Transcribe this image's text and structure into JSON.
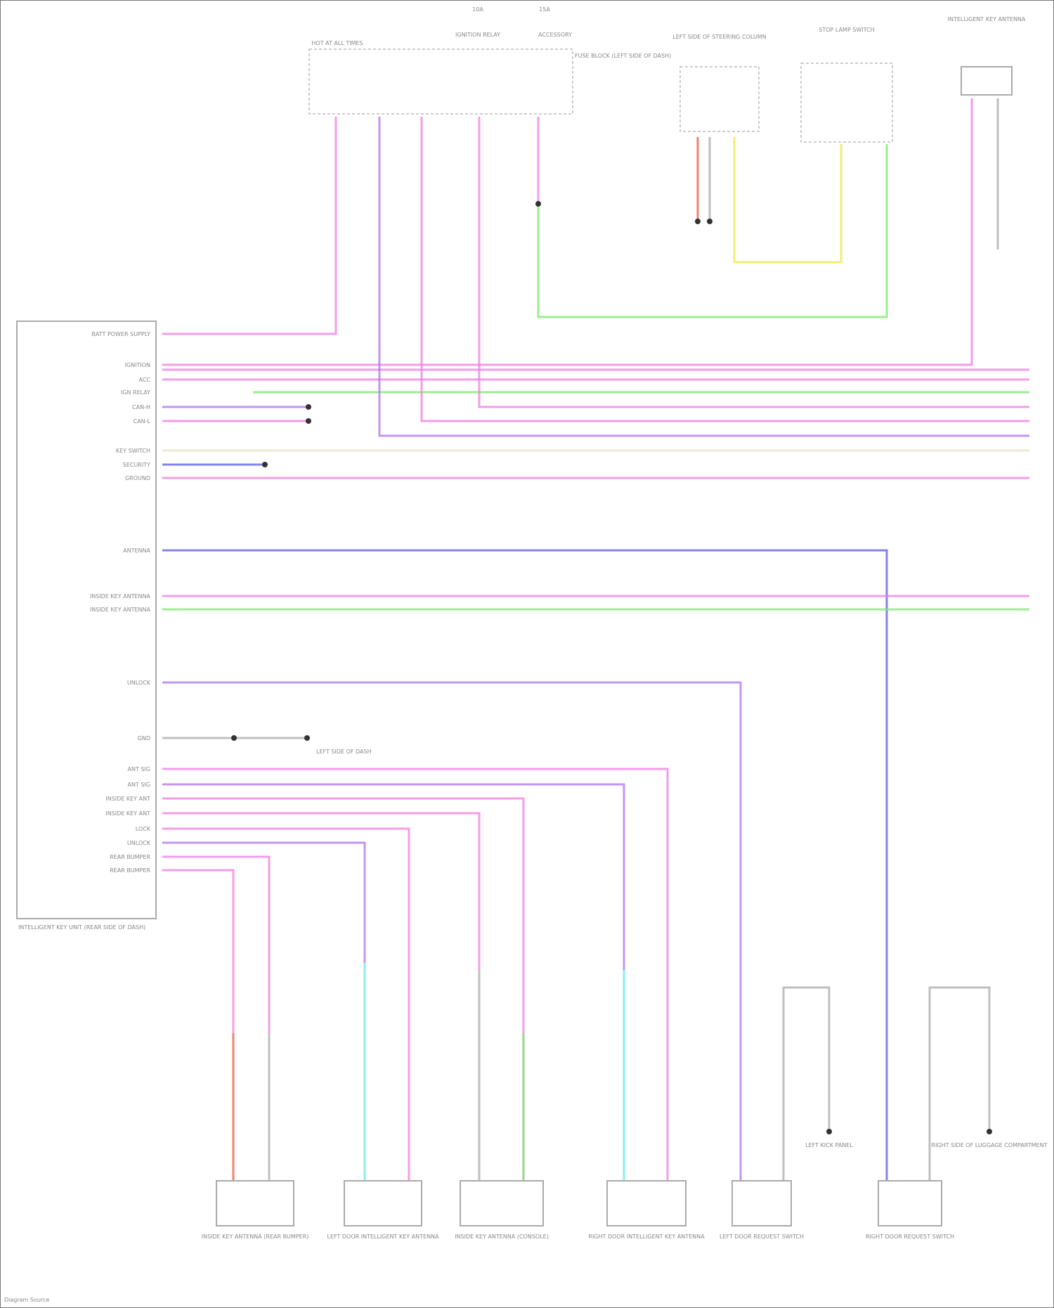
{
  "top": {
    "fuse_label_1": "10A",
    "fuse_label_2": "15A",
    "hot_label": "HOT AT ALL TIMES",
    "relay_label": "IGNITION RELAY",
    "acc_label": "ACCESSORY",
    "fuse_block_label": "FUSE BLOCK (LEFT SIDE OF DASH)",
    "comp_a_label": "LEFT SIDE OF STEERING COLUMN",
    "comp_b_label": "STOP LAMP SWITCH",
    "comp_c_label": "INTELLIGENT KEY ANTENNA"
  },
  "module": {
    "name": "INTELLIGENT KEY UNIT (REAR SIDE OF DASH)",
    "pins": [
      "BATT POWER SUPPLY",
      "IGNITION",
      "ACC",
      "IGN RELAY",
      "CAN-H",
      "CAN-L",
      "KEY SWITCH",
      "SECURITY",
      "GROUND",
      "ANTENNA",
      "INSIDE KEY ANTENNA",
      "INSIDE KEY ANTENNA",
      "UNLOCK",
      "GND",
      "ANT SIG",
      "ANT SIG",
      "INSIDE KEY ANT",
      "INSIDE KEY ANT",
      "LOCK",
      "UNLOCK",
      "REAR BUMPER",
      "REAR BUMPER"
    ]
  },
  "ground_label": "LEFT SIDE OF DASH",
  "bottom_components": [
    "INSIDE KEY ANTENNA (REAR BUMPER)",
    "LEFT DOOR INTELLIGENT KEY ANTENNA",
    "INSIDE KEY ANTENNA (CONSOLE)",
    "RIGHT DOOR INTELLIGENT KEY ANTENNA",
    "LEFT DOOR REQUEST SWITCH",
    "RIGHT DOOR REQUEST SWITCH"
  ],
  "grounds": [
    "LEFT KICK PANEL",
    "RIGHT SIDE OF LUGGAGE COMPARTMENT"
  ],
  "footer": "Diagram Source",
  "colors": {
    "pink": "#f07be0",
    "green": "#7ae86a",
    "purple": "#b070f0",
    "blue": "#5a5ae8",
    "yellow": "#eaea40",
    "red": "#e85a40",
    "cyan": "#60e8e8",
    "grey": "#aaaaaa"
  }
}
